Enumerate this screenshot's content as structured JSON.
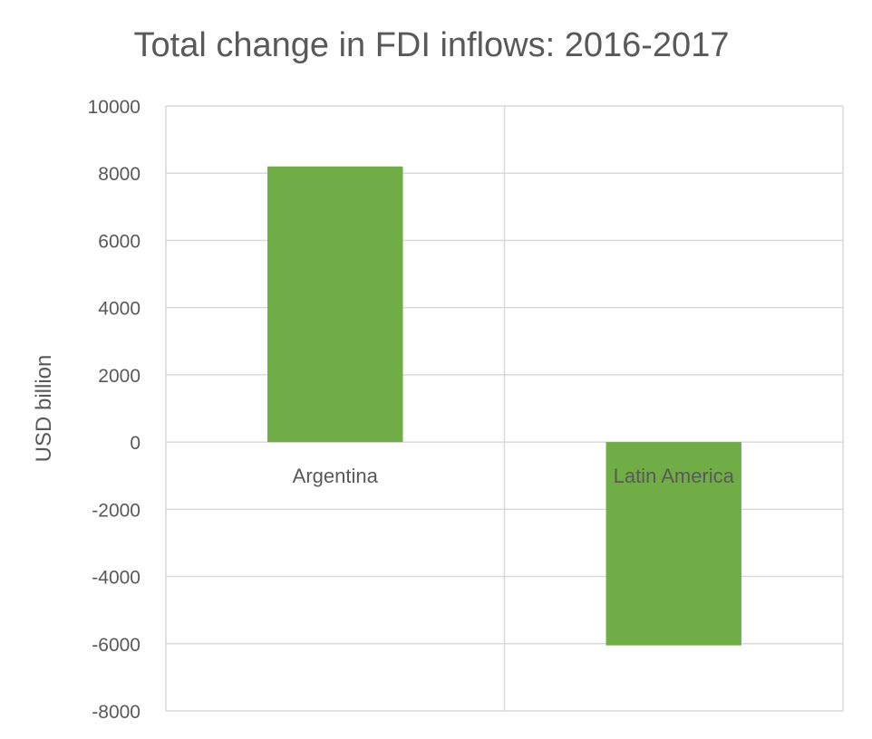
{
  "chart_data": {
    "type": "bar",
    "title": "Total change in FDI inflows: 2016-2017",
    "xlabel": "",
    "ylabel": "USD billion",
    "categories": [
      "Argentina",
      "Latin America"
    ],
    "series": [
      {
        "values": [
          8200,
          -6050
        ]
      }
    ],
    "ylim": [
      -8000,
      10000
    ],
    "ytick_step": 2000,
    "grid": true,
    "legend": "none",
    "bar_color": "#70AD47",
    "grid_color": "#D9D9D9",
    "text_color": "#595959"
  }
}
